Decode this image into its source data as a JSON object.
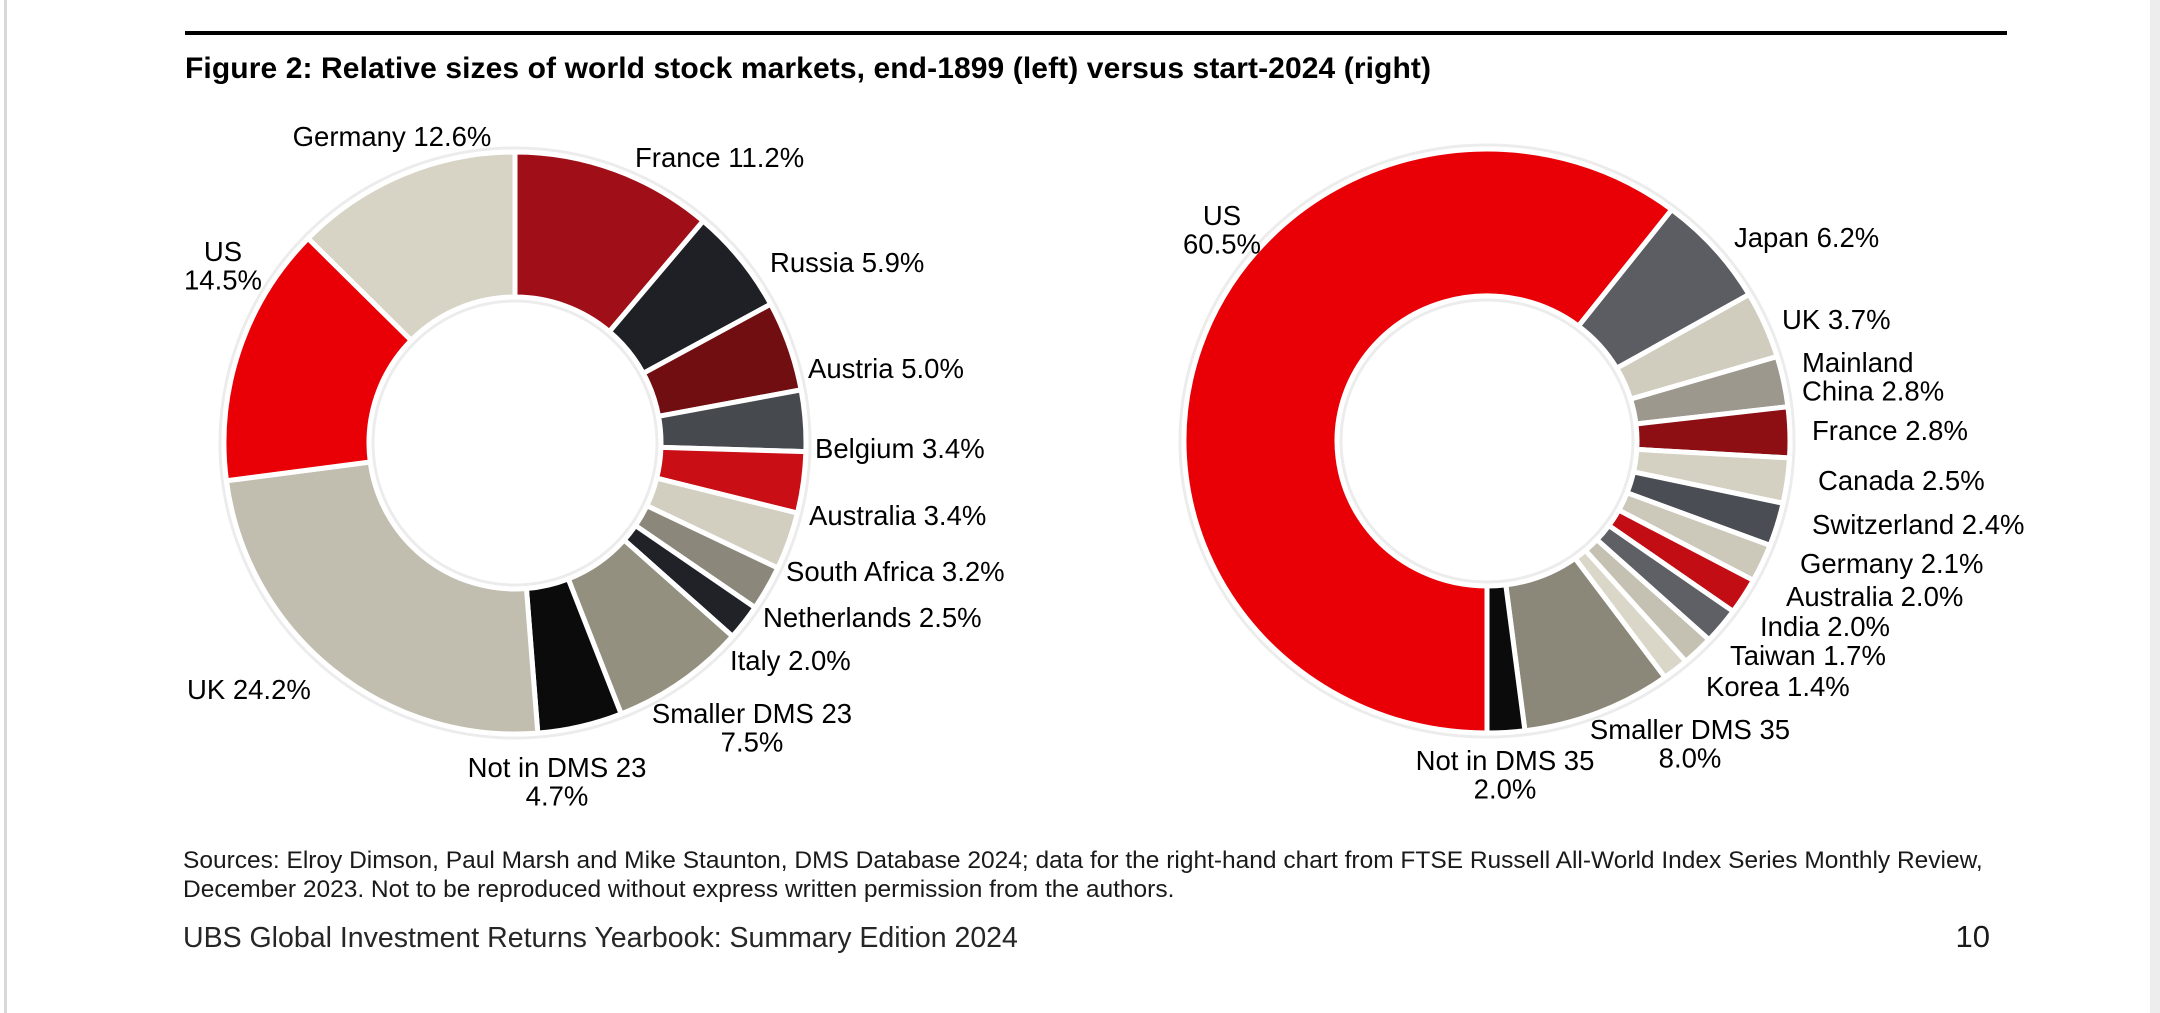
{
  "page": {
    "title": "Figure 2: Relative sizes of world stock markets, end-1899 (left) versus start-2024 (right)",
    "sources_lines": [
      "Sources: Elroy Dimson, Paul Marsh and Mike Staunton, DMS Database 2024; data for the right-hand chart from FTSE Russell All-World Index Series Monthly Review,",
      "December 2023. Not to be reproduced without express written permission from the authors."
    ],
    "footer": "UBS Global Investment Returns Yearbook: Summary Edition 2024",
    "page_number": "10"
  },
  "colors": {
    "accent_red": "#E90006",
    "text": "#000000",
    "rule": "#000000"
  },
  "chart_data": [
    {
      "type": "pie",
      "subtype": "donut",
      "title": "end-1899",
      "position": "left",
      "start_angle_deg": 0,
      "legend": "none",
      "slices": [
        {
          "label": "France",
          "value": 11.2,
          "color": "#A00F17",
          "lines": [
            "France 11.2%"
          ]
        },
        {
          "label": "Russia",
          "value": 5.9,
          "color": "#1F2025",
          "lines": [
            "Russia 5.9%"
          ]
        },
        {
          "label": "Austria",
          "value": 5.0,
          "color": "#700E12",
          "lines": [
            "Austria 5.0%"
          ]
        },
        {
          "label": "Belgium",
          "value": 3.4,
          "color": "#46494D",
          "lines": [
            "Belgium 3.4%"
          ]
        },
        {
          "label": "Australia",
          "value": 3.4,
          "color": "#CA0E15",
          "lines": [
            "Australia 3.4%"
          ]
        },
        {
          "label": "South Africa",
          "value": 3.2,
          "color": "#D2CEC0",
          "lines": [
            "South Africa 3.2%"
          ]
        },
        {
          "label": "Netherlands",
          "value": 2.5,
          "color": "#8B887B",
          "lines": [
            "Netherlands 2.5%"
          ]
        },
        {
          "label": "Italy",
          "value": 2.0,
          "color": "#212227",
          "lines": [
            "Italy 2.0%"
          ]
        },
        {
          "label": "Smaller DMS 23",
          "value": 7.5,
          "color": "#939080",
          "lines": [
            "Smaller DMS 23",
            "7.5%"
          ]
        },
        {
          "label": "Not in DMS 23",
          "value": 4.7,
          "color": "#0B0B0C",
          "lines": [
            "Not in DMS 23",
            "4.7%"
          ]
        },
        {
          "label": "UK",
          "value": 24.2,
          "color": "#C1BDAF",
          "lines": [
            "UK 24.2%"
          ]
        },
        {
          "label": "US",
          "value": 14.5,
          "color": "#E90006",
          "lines": [
            "US",
            "14.5%"
          ]
        },
        {
          "label": "Germany",
          "value": 12.6,
          "color": "#D7D3C5",
          "lines": [
            "Germany 12.6%"
          ]
        }
      ]
    },
    {
      "type": "pie",
      "subtype": "donut",
      "title": "start-2024",
      "position": "right",
      "start_angle_deg": 180,
      "legend": "none",
      "slices": [
        {
          "label": "US",
          "value": 60.5,
          "color": "#E90006",
          "lines": [
            "US",
            "60.5%"
          ]
        },
        {
          "label": "Japan",
          "value": 6.2,
          "color": "#5C5D62",
          "lines": [
            "Japan 6.2%"
          ]
        },
        {
          "label": "UK",
          "value": 3.7,
          "color": "#D0CCBE",
          "lines": [
            "UK 3.7%"
          ]
        },
        {
          "label": "Mainland China",
          "value": 2.8,
          "color": "#9C988E",
          "lines": [
            "Mainland",
            "China 2.8%"
          ]
        },
        {
          "label": "France",
          "value": 2.8,
          "color": "#8D0F14",
          "lines": [
            "France 2.8%"
          ]
        },
        {
          "label": "Canada",
          "value": 2.5,
          "color": "#D4D0C2",
          "lines": [
            "Canada 2.5%"
          ]
        },
        {
          "label": "Switzerland",
          "value": 2.4,
          "color": "#4A4D53",
          "lines": [
            "Switzerland 2.4%"
          ]
        },
        {
          "label": "Germany",
          "value": 2.1,
          "color": "#CCC8BA",
          "lines": [
            "Germany 2.1%"
          ]
        },
        {
          "label": "Australia",
          "value": 2.0,
          "color": "#C20D15",
          "lines": [
            "Australia 2.0%"
          ]
        },
        {
          "label": "India",
          "value": 2.0,
          "color": "#5F6065",
          "lines": [
            "India 2.0%"
          ]
        },
        {
          "label": "Taiwan",
          "value": 1.7,
          "color": "#C4C0B2",
          "lines": [
            "Taiwan 1.7%"
          ]
        },
        {
          "label": "Korea",
          "value": 1.4,
          "color": "#DAD6C8",
          "lines": [
            "Korea 1.4%"
          ]
        },
        {
          "label": "Smaller DMS 35",
          "value": 8.0,
          "color": "#8B887A",
          "lines": [
            "Smaller DMS 35",
            "8.0%"
          ]
        },
        {
          "label": "Not in DMS 35",
          "value": 2.0,
          "color": "#0B0B0C",
          "lines": [
            "Not in DMS 35",
            "2.0%"
          ]
        }
      ]
    }
  ]
}
